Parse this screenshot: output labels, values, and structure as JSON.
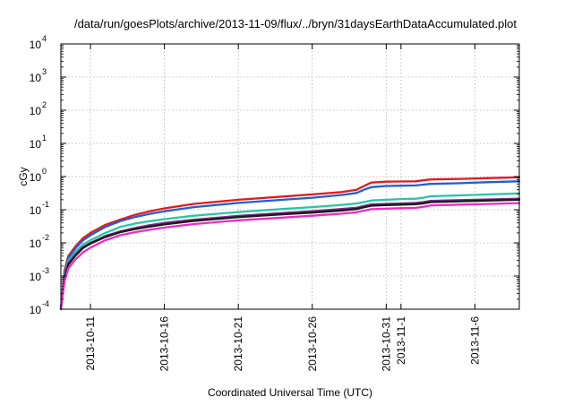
{
  "chart_data": {
    "type": "line",
    "title": "/data/run/goesPlots/archive/2013-11-09/flux/../bryn/31daysEarthDataAccumulated.plot",
    "xlabel": "Coordinated Universal Time (UTC)",
    "ylabel": "cGy",
    "x_range": [
      "2013-10-09",
      "2013-11-09"
    ],
    "x_ticks": [
      {
        "date": "2013-10-11",
        "label": "2013-10-11"
      },
      {
        "date": "2013-10-16",
        "label": "2013-10-16"
      },
      {
        "date": "2013-10-21",
        "label": "2013-10-21"
      },
      {
        "date": "2013-10-26",
        "label": "2013-10-26"
      },
      {
        "date": "2013-10-31",
        "label": "2013-10-31"
      },
      {
        "date": "2013-11-01",
        "label": "2013-11-1"
      },
      {
        "date": "2013-11-06",
        "label": "2013-11-6"
      }
    ],
    "y_scale": "log",
    "ylim": [
      0.0001,
      10000
    ],
    "y_ticks": [
      {
        "value": 0.0001,
        "base": "10",
        "exp": "-4"
      },
      {
        "value": 0.001,
        "base": "10",
        "exp": "-3"
      },
      {
        "value": 0.01,
        "base": "10",
        "exp": "-2"
      },
      {
        "value": 0.1,
        "base": "10",
        "exp": "-1"
      },
      {
        "value": 1,
        "base": "10",
        "exp": "0"
      },
      {
        "value": 10,
        "base": "10",
        "exp": "1"
      },
      {
        "value": 100,
        "base": "10",
        "exp": "2"
      },
      {
        "value": 1000,
        "base": "10",
        "exp": "3"
      },
      {
        "value": 10000,
        "base": "10",
        "exp": "4"
      }
    ],
    "grid": true,
    "series": [
      {
        "color": "#e41a1c",
        "points": [
          [
            "2013-10-09 00:00",
            0.0001
          ],
          [
            "2013-10-09 06:00",
            0.0015
          ],
          [
            "2013-10-09 12:00",
            0.004
          ],
          [
            "2013-10-10 00:00",
            0.008
          ],
          [
            "2013-10-10 12:00",
            0.014
          ],
          [
            "2013-10-11 00:00",
            0.02
          ],
          [
            "2013-10-12 00:00",
            0.035
          ],
          [
            "2013-10-13 00:00",
            0.05
          ],
          [
            "2013-10-14 00:00",
            0.07
          ],
          [
            "2013-10-15 00:00",
            0.09
          ],
          [
            "2013-10-16 00:00",
            0.11
          ],
          [
            "2013-10-18 00:00",
            0.15
          ],
          [
            "2013-10-21 00:00",
            0.2
          ],
          [
            "2013-10-24 00:00",
            0.25
          ],
          [
            "2013-10-26 00:00",
            0.29
          ],
          [
            "2013-10-28 00:00",
            0.34
          ],
          [
            "2013-10-29 00:00",
            0.4
          ],
          [
            "2013-10-29 12:00",
            0.52
          ],
          [
            "2013-10-30 00:00",
            0.66
          ],
          [
            "2013-10-31 00:00",
            0.7
          ],
          [
            "2013-11-01 00:00",
            0.71
          ],
          [
            "2013-11-02 00:00",
            0.72
          ],
          [
            "2013-11-02 12:00",
            0.77
          ],
          [
            "2013-11-03 00:00",
            0.82
          ],
          [
            "2013-11-05 00:00",
            0.85
          ],
          [
            "2013-11-07 00:00",
            0.9
          ],
          [
            "2013-11-09 00:00",
            0.95
          ]
        ]
      },
      {
        "color": "#1f5fd8",
        "points": [
          [
            "2013-10-09 00:00",
            0.0001
          ],
          [
            "2013-10-09 06:00",
            0.0012
          ],
          [
            "2013-10-09 12:00",
            0.0035
          ],
          [
            "2013-10-10 00:00",
            0.007
          ],
          [
            "2013-10-10 12:00",
            0.012
          ],
          [
            "2013-10-11 00:00",
            0.017
          ],
          [
            "2013-10-12 00:00",
            0.03
          ],
          [
            "2013-10-13 00:00",
            0.045
          ],
          [
            "2013-10-14 00:00",
            0.06
          ],
          [
            "2013-10-15 00:00",
            0.075
          ],
          [
            "2013-10-16 00:00",
            0.09
          ],
          [
            "2013-10-18 00:00",
            0.12
          ],
          [
            "2013-10-21 00:00",
            0.16
          ],
          [
            "2013-10-24 00:00",
            0.2
          ],
          [
            "2013-10-26 00:00",
            0.23
          ],
          [
            "2013-10-28 00:00",
            0.28
          ],
          [
            "2013-10-29 00:00",
            0.32
          ],
          [
            "2013-10-29 12:00",
            0.4
          ],
          [
            "2013-10-30 00:00",
            0.48
          ],
          [
            "2013-10-31 00:00",
            0.52
          ],
          [
            "2013-11-01 00:00",
            0.53
          ],
          [
            "2013-11-02 00:00",
            0.54
          ],
          [
            "2013-11-02 12:00",
            0.57
          ],
          [
            "2013-11-03 00:00",
            0.6
          ],
          [
            "2013-11-05 00:00",
            0.63
          ],
          [
            "2013-11-07 00:00",
            0.68
          ],
          [
            "2013-11-09 00:00",
            0.72
          ]
        ]
      },
      {
        "color": "#26c6a6",
        "points": [
          [
            "2013-10-09 00:00",
            0.0001
          ],
          [
            "2013-10-09 06:00",
            0.001
          ],
          [
            "2013-10-09 12:00",
            0.0028
          ],
          [
            "2013-10-10 00:00",
            0.0055
          ],
          [
            "2013-10-10 12:00",
            0.009
          ],
          [
            "2013-10-11 00:00",
            0.012
          ],
          [
            "2013-10-12 00:00",
            0.02
          ],
          [
            "2013-10-13 00:00",
            0.03
          ],
          [
            "2013-10-14 00:00",
            0.038
          ],
          [
            "2013-10-15 00:00",
            0.045
          ],
          [
            "2013-10-16 00:00",
            0.052
          ],
          [
            "2013-10-18 00:00",
            0.066
          ],
          [
            "2013-10-21 00:00",
            0.085
          ],
          [
            "2013-10-24 00:00",
            0.105
          ],
          [
            "2013-10-26 00:00",
            0.12
          ],
          [
            "2013-10-28 00:00",
            0.14
          ],
          [
            "2013-10-29 00:00",
            0.155
          ],
          [
            "2013-10-29 12:00",
            0.17
          ],
          [
            "2013-10-30 00:00",
            0.19
          ],
          [
            "2013-10-31 00:00",
            0.2
          ],
          [
            "2013-11-01 00:00",
            0.21
          ],
          [
            "2013-11-02 00:00",
            0.215
          ],
          [
            "2013-11-02 12:00",
            0.23
          ],
          [
            "2013-11-03 00:00",
            0.255
          ],
          [
            "2013-11-05 00:00",
            0.27
          ],
          [
            "2013-11-07 00:00",
            0.29
          ],
          [
            "2013-11-09 00:00",
            0.31
          ]
        ]
      },
      {
        "color": "#7b2a86",
        "points": [
          [
            "2013-10-09 00:00",
            0.0001
          ],
          [
            "2013-10-09 06:00",
            0.0009
          ],
          [
            "2013-10-09 12:00",
            0.0024
          ],
          [
            "2013-10-10 00:00",
            0.0045
          ],
          [
            "2013-10-10 12:00",
            0.0075
          ],
          [
            "2013-10-11 00:00",
            0.01
          ],
          [
            "2013-10-12 00:00",
            0.016
          ],
          [
            "2013-10-13 00:00",
            0.022
          ],
          [
            "2013-10-14 00:00",
            0.028
          ],
          [
            "2013-10-15 00:00",
            0.034
          ],
          [
            "2013-10-16 00:00",
            0.04
          ],
          [
            "2013-10-18 00:00",
            0.05
          ],
          [
            "2013-10-21 00:00",
            0.065
          ],
          [
            "2013-10-24 00:00",
            0.08
          ],
          [
            "2013-10-26 00:00",
            0.09
          ],
          [
            "2013-10-28 00:00",
            0.105
          ],
          [
            "2013-10-29 00:00",
            0.115
          ],
          [
            "2013-10-29 12:00",
            0.13
          ],
          [
            "2013-10-30 00:00",
            0.145
          ],
          [
            "2013-10-31 00:00",
            0.15
          ],
          [
            "2013-11-01 00:00",
            0.155
          ],
          [
            "2013-11-02 00:00",
            0.16
          ],
          [
            "2013-11-02 12:00",
            0.17
          ],
          [
            "2013-11-03 00:00",
            0.185
          ],
          [
            "2013-11-05 00:00",
            0.195
          ],
          [
            "2013-11-07 00:00",
            0.205
          ],
          [
            "2013-11-09 00:00",
            0.215
          ]
        ]
      },
      {
        "color": "#1a1a1a",
        "points": [
          [
            "2013-10-09 00:00",
            0.0001
          ],
          [
            "2013-10-09 06:00",
            0.00085
          ],
          [
            "2013-10-09 12:00",
            0.0022
          ],
          [
            "2013-10-10 00:00",
            0.0042
          ],
          [
            "2013-10-10 12:00",
            0.007
          ],
          [
            "2013-10-11 00:00",
            0.0095
          ],
          [
            "2013-10-12 00:00",
            0.015
          ],
          [
            "2013-10-13 00:00",
            0.021
          ],
          [
            "2013-10-14 00:00",
            0.026
          ],
          [
            "2013-10-15 00:00",
            0.031
          ],
          [
            "2013-10-16 00:00",
            0.036
          ],
          [
            "2013-10-18 00:00",
            0.046
          ],
          [
            "2013-10-21 00:00",
            0.06
          ],
          [
            "2013-10-24 00:00",
            0.073
          ],
          [
            "2013-10-26 00:00",
            0.082
          ],
          [
            "2013-10-28 00:00",
            0.095
          ],
          [
            "2013-10-29 00:00",
            0.105
          ],
          [
            "2013-10-29 12:00",
            0.118
          ],
          [
            "2013-10-30 00:00",
            0.132
          ],
          [
            "2013-10-31 00:00",
            0.138
          ],
          [
            "2013-11-01 00:00",
            0.142
          ],
          [
            "2013-11-02 00:00",
            0.146
          ],
          [
            "2013-11-02 12:00",
            0.155
          ],
          [
            "2013-11-03 00:00",
            0.17
          ],
          [
            "2013-11-05 00:00",
            0.18
          ],
          [
            "2013-11-07 00:00",
            0.19
          ],
          [
            "2013-11-09 00:00",
            0.2
          ]
        ]
      },
      {
        "color": "#ee2bc4",
        "points": [
          [
            "2013-10-09 00:00",
            0.0001
          ],
          [
            "2013-10-09 06:00",
            0.0007
          ],
          [
            "2013-10-09 12:00",
            0.0017
          ],
          [
            "2013-10-10 00:00",
            0.0032
          ],
          [
            "2013-10-10 12:00",
            0.0052
          ],
          [
            "2013-10-11 00:00",
            0.0072
          ],
          [
            "2013-10-12 00:00",
            0.012
          ],
          [
            "2013-10-13 00:00",
            0.017
          ],
          [
            "2013-10-14 00:00",
            0.021
          ],
          [
            "2013-10-15 00:00",
            0.025
          ],
          [
            "2013-10-16 00:00",
            0.029
          ],
          [
            "2013-10-18 00:00",
            0.037
          ],
          [
            "2013-10-21 00:00",
            0.048
          ],
          [
            "2013-10-24 00:00",
            0.058
          ],
          [
            "2013-10-26 00:00",
            0.066
          ],
          [
            "2013-10-28 00:00",
            0.076
          ],
          [
            "2013-10-29 00:00",
            0.084
          ],
          [
            "2013-10-29 12:00",
            0.094
          ],
          [
            "2013-10-30 00:00",
            0.104
          ],
          [
            "2013-10-31 00:00",
            0.108
          ],
          [
            "2013-11-01 00:00",
            0.111
          ],
          [
            "2013-11-02 00:00",
            0.114
          ],
          [
            "2013-11-02 12:00",
            0.122
          ],
          [
            "2013-11-03 00:00",
            0.135
          ],
          [
            "2013-11-05 00:00",
            0.143
          ],
          [
            "2013-11-07 00:00",
            0.15
          ],
          [
            "2013-11-09 00:00",
            0.158
          ]
        ]
      }
    ]
  }
}
